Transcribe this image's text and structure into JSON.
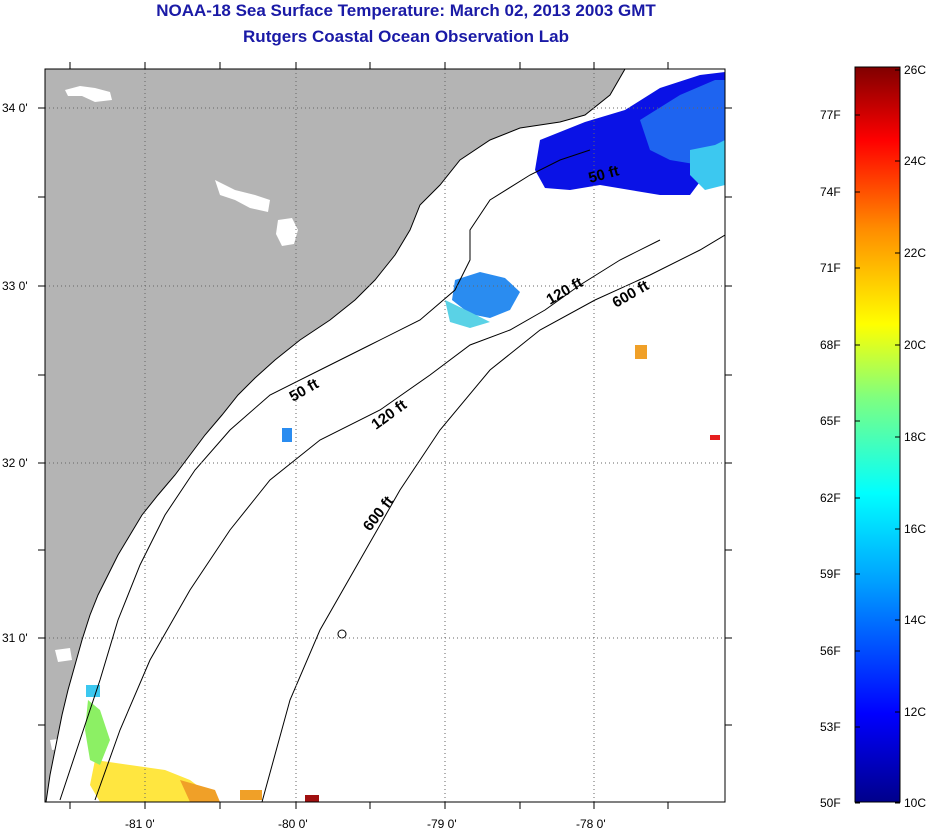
{
  "header": {
    "title": "NOAA-18 Sea Surface Temperature:  March 02, 2013 2003 GMT",
    "subtitle": "Rutgers Coastal Ocean Observation Lab"
  },
  "map": {
    "lat_labels": [
      "34 0'",
      "33 0'",
      "32 0'",
      "31 0'"
    ],
    "lon_labels": [
      "-81 0'",
      "-80 0'",
      "-79 0'",
      "-78 0'"
    ],
    "contour_labels": [
      "50 ft",
      "120 ft",
      "600 ft",
      "50 ft",
      "120 ft",
      "600 ft"
    ],
    "colors": {
      "land": "#b4b4b4",
      "ocean": "#ffffff",
      "grid": "#000000"
    }
  },
  "colorbar": {
    "fahrenheit_labels": [
      "77F",
      "74F",
      "71F",
      "68F",
      "65F",
      "62F",
      "59F",
      "56F",
      "53F",
      "50F"
    ],
    "celsius_labels": [
      "26C",
      "24C",
      "22C",
      "20C",
      "18C",
      "16C",
      "14C",
      "12C",
      "10C"
    ],
    "colors": [
      "#00008b",
      "#0000ff",
      "#00bfff",
      "#00ffff",
      "#7fff7f",
      "#ffff00",
      "#ff8c00",
      "#ff0000",
      "#800000"
    ]
  }
}
